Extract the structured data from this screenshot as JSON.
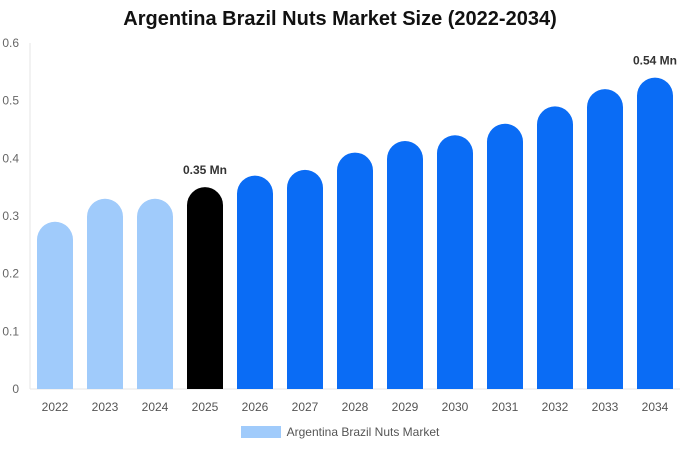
{
  "chart_data": {
    "type": "bar",
    "title": "Argentina Brazil Nuts Market Size (2022-2034)",
    "categories": [
      "2022",
      "2023",
      "2024",
      "2025",
      "2026",
      "2027",
      "2028",
      "2029",
      "2030",
      "2031",
      "2032",
      "2033",
      "2034"
    ],
    "series": [
      {
        "name": "Argentina Brazil Nuts Market",
        "values": [
          0.29,
          0.33,
          0.33,
          0.35,
          0.37,
          0.38,
          0.41,
          0.43,
          0.44,
          0.46,
          0.49,
          0.52,
          0.54
        ]
      }
    ],
    "ylim": [
      0,
      0.6
    ],
    "yticks": [
      "0",
      "0.1",
      "0.2",
      "0.3",
      "0.4",
      "0.5",
      "0.6"
    ],
    "annotations": [
      {
        "category": "2025",
        "text": "0.35 Mn"
      },
      {
        "category": "2034",
        "text": "0.54 Mn"
      }
    ],
    "colors": {
      "historical": "#a0cbfb",
      "current": "#000000",
      "forecast": "#0a6cf5"
    },
    "historical_categories": [
      "2022",
      "2023",
      "2024"
    ],
    "current_category": "2025",
    "legend_placement": "bottom-center"
  }
}
